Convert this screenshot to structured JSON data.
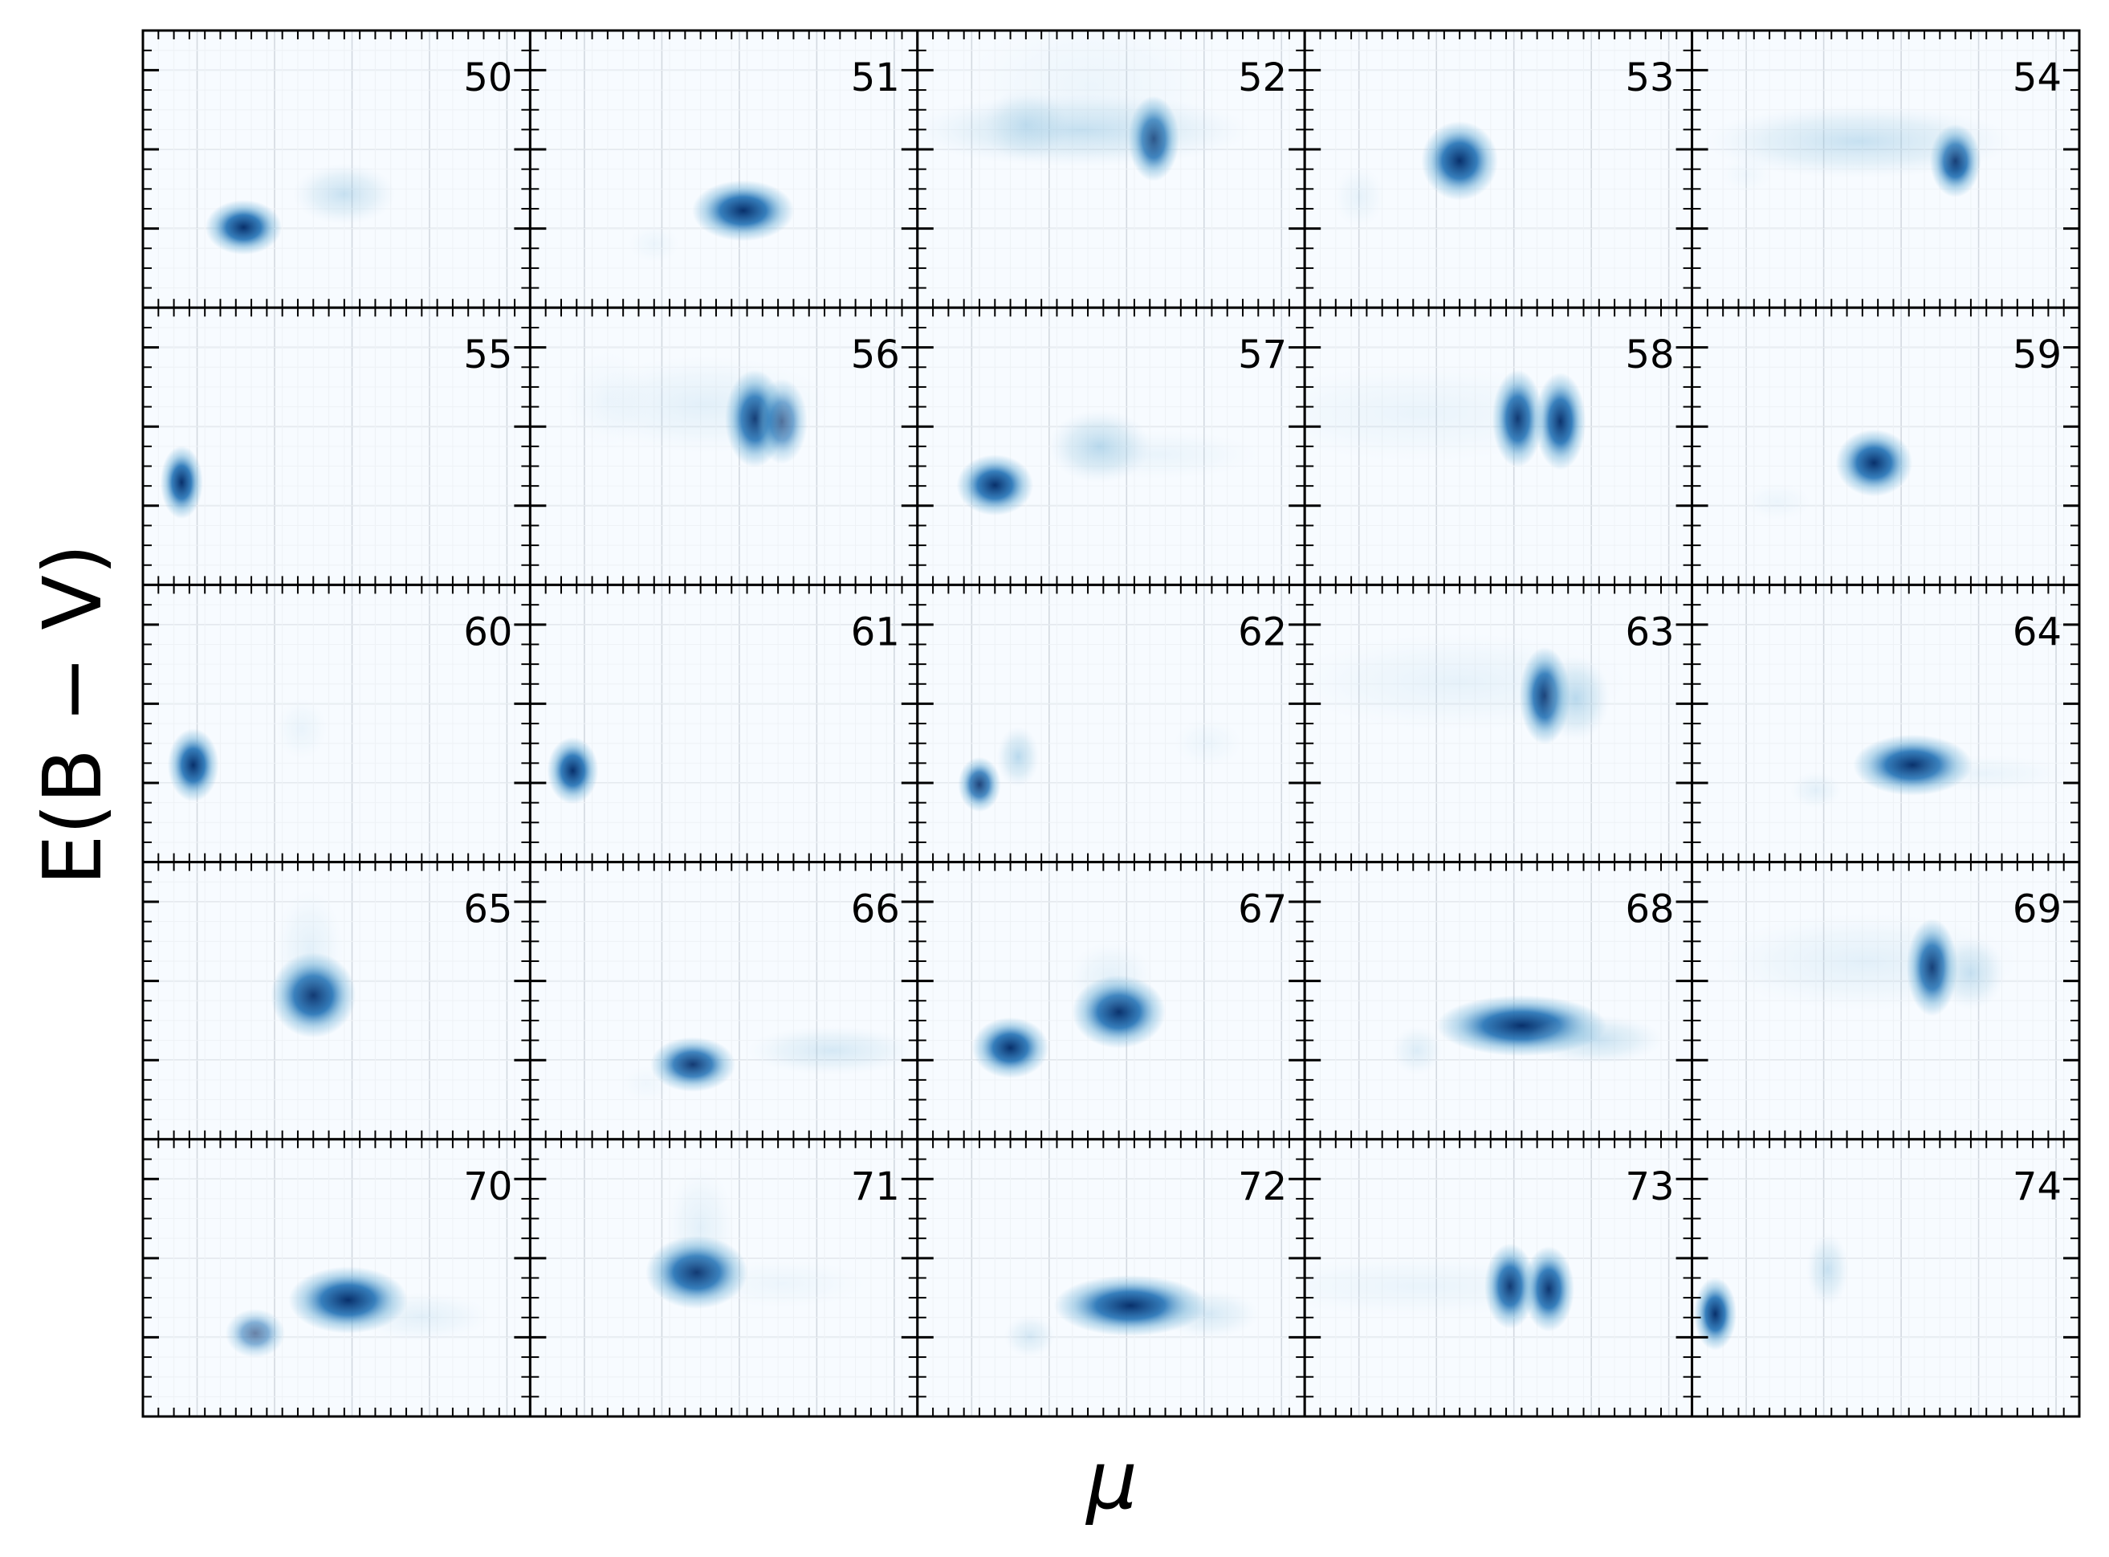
{
  "chart_data": {
    "type": "heatmap",
    "xlabel": "μ",
    "ylabel": "E(B − V)",
    "grid": true,
    "tick_labels_shown": false,
    "colormap": "Blues",
    "colors": {
      "low": "#f7fbff",
      "mid": "#6baed6",
      "high": "#08306b",
      "frame": "#000000",
      "grid": "#d3d9e0"
    },
    "layout": {
      "rows": 5,
      "cols": 5
    },
    "panels": [
      {
        "label": "50",
        "blobs": [
          {
            "x": 0.26,
            "y": 0.29,
            "w": 0.045,
            "h": 0.045,
            "a": 1.0
          },
          {
            "x": 0.52,
            "y": 0.41,
            "w": 0.06,
            "h": 0.05,
            "a": 0.35
          }
        ]
      },
      {
        "label": "51",
        "blobs": [
          {
            "x": 0.55,
            "y": 0.35,
            "w": 0.06,
            "h": 0.05,
            "a": 1.0
          },
          {
            "x": 0.32,
            "y": 0.23,
            "w": 0.03,
            "h": 0.03,
            "a": 0.08
          }
        ]
      },
      {
        "label": "52",
        "blobs": [
          {
            "x": 0.61,
            "y": 0.61,
            "w": 0.03,
            "h": 0.07,
            "a": 1.0
          },
          {
            "x": 0.42,
            "y": 0.64,
            "w": 0.2,
            "h": 0.06,
            "a": 0.35
          },
          {
            "x": 0.28,
            "y": 0.66,
            "w": 0.05,
            "h": 0.06,
            "a": 0.25
          },
          {
            "x": 0.45,
            "y": 0.8,
            "w": 0.15,
            "h": 0.12,
            "a": 0.08
          }
        ]
      },
      {
        "label": "53",
        "blobs": [
          {
            "x": 0.4,
            "y": 0.53,
            "w": 0.045,
            "h": 0.065,
            "a": 1.0
          },
          {
            "x": 0.14,
            "y": 0.4,
            "w": 0.03,
            "h": 0.05,
            "a": 0.12
          }
        ]
      },
      {
        "label": "54",
        "blobs": [
          {
            "x": 0.68,
            "y": 0.53,
            "w": 0.03,
            "h": 0.06,
            "a": 1.0
          },
          {
            "x": 0.43,
            "y": 0.6,
            "w": 0.18,
            "h": 0.06,
            "a": 0.35
          },
          {
            "x": 0.14,
            "y": 0.48,
            "w": 0.03,
            "h": 0.03,
            "a": 0.06
          }
        ]
      },
      {
        "label": "55",
        "blobs": [
          {
            "x": 0.1,
            "y": 0.37,
            "w": 0.025,
            "h": 0.06,
            "a": 1.0
          }
        ]
      },
      {
        "label": "56",
        "blobs": [
          {
            "x": 0.58,
            "y": 0.6,
            "w": 0.035,
            "h": 0.08,
            "a": 1.0
          },
          {
            "x": 0.65,
            "y": 0.59,
            "w": 0.03,
            "h": 0.07,
            "a": 0.7
          },
          {
            "x": 0.45,
            "y": 0.65,
            "w": 0.15,
            "h": 0.08,
            "a": 0.15
          },
          {
            "x": 0.2,
            "y": 0.67,
            "w": 0.05,
            "h": 0.08,
            "a": 0.06
          }
        ]
      },
      {
        "label": "57",
        "blobs": [
          {
            "x": 0.2,
            "y": 0.36,
            "w": 0.045,
            "h": 0.05,
            "a": 1.0
          },
          {
            "x": 0.47,
            "y": 0.5,
            "w": 0.06,
            "h": 0.06,
            "a": 0.45
          },
          {
            "x": 0.62,
            "y": 0.47,
            "w": 0.12,
            "h": 0.04,
            "a": 0.1
          }
        ]
      },
      {
        "label": "58",
        "blobs": [
          {
            "x": 0.55,
            "y": 0.6,
            "w": 0.03,
            "h": 0.08,
            "a": 1.0
          },
          {
            "x": 0.66,
            "y": 0.59,
            "w": 0.03,
            "h": 0.08,
            "a": 1.0
          },
          {
            "x": 0.3,
            "y": 0.62,
            "w": 0.2,
            "h": 0.08,
            "a": 0.1
          }
        ]
      },
      {
        "label": "59",
        "blobs": [
          {
            "x": 0.47,
            "y": 0.44,
            "w": 0.045,
            "h": 0.055,
            "a": 1.0
          },
          {
            "x": 0.22,
            "y": 0.3,
            "w": 0.04,
            "h": 0.03,
            "a": 0.08
          }
        ]
      },
      {
        "label": "60",
        "blobs": [
          {
            "x": 0.13,
            "y": 0.35,
            "w": 0.03,
            "h": 0.06,
            "a": 1.0
          },
          {
            "x": 0.41,
            "y": 0.48,
            "w": 0.03,
            "h": 0.05,
            "a": 0.1
          }
        ]
      },
      {
        "label": "61",
        "blobs": [
          {
            "x": 0.11,
            "y": 0.33,
            "w": 0.03,
            "h": 0.055,
            "a": 1.0
          }
        ]
      },
      {
        "label": "62",
        "blobs": [
          {
            "x": 0.16,
            "y": 0.28,
            "w": 0.025,
            "h": 0.045,
            "a": 0.9
          },
          {
            "x": 0.26,
            "y": 0.38,
            "w": 0.025,
            "h": 0.05,
            "a": 0.45
          },
          {
            "x": 0.75,
            "y": 0.43,
            "w": 0.04,
            "h": 0.04,
            "a": 0.08
          }
        ]
      },
      {
        "label": "63",
        "blobs": [
          {
            "x": 0.62,
            "y": 0.6,
            "w": 0.03,
            "h": 0.08,
            "a": 1.0
          },
          {
            "x": 0.7,
            "y": 0.59,
            "w": 0.04,
            "h": 0.07,
            "a": 0.45
          },
          {
            "x": 0.4,
            "y": 0.65,
            "w": 0.2,
            "h": 0.08,
            "a": 0.12
          }
        ]
      },
      {
        "label": "64",
        "blobs": [
          {
            "x": 0.57,
            "y": 0.35,
            "w": 0.07,
            "h": 0.05,
            "a": 1.0
          },
          {
            "x": 0.32,
            "y": 0.26,
            "w": 0.03,
            "h": 0.03,
            "a": 0.15
          },
          {
            "x": 0.75,
            "y": 0.32,
            "w": 0.1,
            "h": 0.03,
            "a": 0.1
          }
        ]
      },
      {
        "label": "65",
        "blobs": [
          {
            "x": 0.44,
            "y": 0.52,
            "w": 0.05,
            "h": 0.07,
            "a": 1.0
          },
          {
            "x": 0.43,
            "y": 0.68,
            "w": 0.04,
            "h": 0.1,
            "a": 0.15
          }
        ]
      },
      {
        "label": "66",
        "blobs": [
          {
            "x": 0.42,
            "y": 0.27,
            "w": 0.05,
            "h": 0.045,
            "a": 0.95
          },
          {
            "x": 0.78,
            "y": 0.32,
            "w": 0.1,
            "h": 0.04,
            "a": 0.25
          },
          {
            "x": 0.3,
            "y": 0.2,
            "w": 0.03,
            "h": 0.03,
            "a": 0.06
          }
        ]
      },
      {
        "label": "67",
        "blobs": [
          {
            "x": 0.24,
            "y": 0.33,
            "w": 0.045,
            "h": 0.05,
            "a": 1.0
          },
          {
            "x": 0.52,
            "y": 0.46,
            "w": 0.055,
            "h": 0.06,
            "a": 1.0
          },
          {
            "x": 0.5,
            "y": 0.58,
            "w": 0.05,
            "h": 0.06,
            "a": 0.15
          }
        ]
      },
      {
        "label": "68",
        "blobs": [
          {
            "x": 0.56,
            "y": 0.41,
            "w": 0.1,
            "h": 0.05,
            "a": 1.0
          },
          {
            "x": 0.75,
            "y": 0.36,
            "w": 0.08,
            "h": 0.04,
            "a": 0.35
          },
          {
            "x": 0.29,
            "y": 0.32,
            "w": 0.03,
            "h": 0.04,
            "a": 0.2
          }
        ]
      },
      {
        "label": "69",
        "blobs": [
          {
            "x": 0.62,
            "y": 0.62,
            "w": 0.03,
            "h": 0.08,
            "a": 1.0
          },
          {
            "x": 0.72,
            "y": 0.6,
            "w": 0.04,
            "h": 0.06,
            "a": 0.35
          },
          {
            "x": 0.45,
            "y": 0.64,
            "w": 0.18,
            "h": 0.08,
            "a": 0.15
          }
        ]
      },
      {
        "label": "70",
        "blobs": [
          {
            "x": 0.53,
            "y": 0.42,
            "w": 0.07,
            "h": 0.055,
            "a": 1.0
          },
          {
            "x": 0.29,
            "y": 0.3,
            "w": 0.035,
            "h": 0.04,
            "a": 0.6
          },
          {
            "x": 0.72,
            "y": 0.36,
            "w": 0.08,
            "h": 0.04,
            "a": 0.15
          }
        ]
      },
      {
        "label": "71",
        "blobs": [
          {
            "x": 0.43,
            "y": 0.52,
            "w": 0.06,
            "h": 0.06,
            "a": 1.0
          },
          {
            "x": 0.44,
            "y": 0.68,
            "w": 0.04,
            "h": 0.1,
            "a": 0.15
          },
          {
            "x": 0.65,
            "y": 0.48,
            "w": 0.1,
            "h": 0.04,
            "a": 0.08
          }
        ]
      },
      {
        "label": "72",
        "blobs": [
          {
            "x": 0.55,
            "y": 0.4,
            "w": 0.09,
            "h": 0.05,
            "a": 1.0
          },
          {
            "x": 0.75,
            "y": 0.37,
            "w": 0.06,
            "h": 0.04,
            "a": 0.25
          },
          {
            "x": 0.29,
            "y": 0.29,
            "w": 0.03,
            "h": 0.035,
            "a": 0.25
          }
        ]
      },
      {
        "label": "73",
        "blobs": [
          {
            "x": 0.53,
            "y": 0.47,
            "w": 0.03,
            "h": 0.07,
            "a": 1.0
          },
          {
            "x": 0.63,
            "y": 0.46,
            "w": 0.03,
            "h": 0.07,
            "a": 1.0
          },
          {
            "x": 0.3,
            "y": 0.47,
            "w": 0.2,
            "h": 0.05,
            "a": 0.1
          }
        ]
      },
      {
        "label": "74",
        "blobs": [
          {
            "x": 0.06,
            "y": 0.37,
            "w": 0.025,
            "h": 0.06,
            "a": 1.0
          },
          {
            "x": 0.35,
            "y": 0.53,
            "w": 0.025,
            "h": 0.06,
            "a": 0.35
          }
        ]
      }
    ]
  }
}
